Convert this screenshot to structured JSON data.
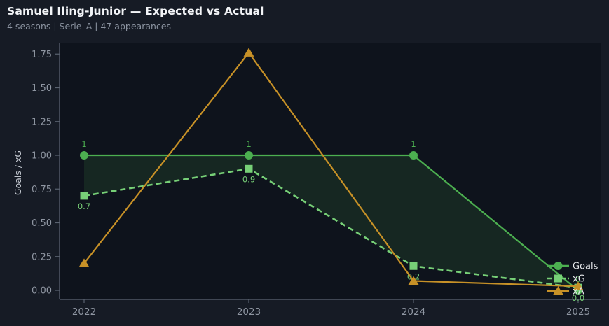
{
  "header": {
    "title": "Samuel Iling-Junior — Expected vs Actual",
    "subtitle": "4 seasons | Serie_A | 47 appearances"
  },
  "colors": {
    "page_bg": "#161b25",
    "plot_bg": "#0e131c",
    "axis": "#5a6270",
    "tick_text": "#8f96a2",
    "ylabel_text": "#c7ccd4",
    "legend_text": "#e6e8eb",
    "goals": "#4caf50",
    "xg": "#77d077",
    "xa": "#c79127",
    "fill_between": "rgba(76,175,80,0.13)"
  },
  "chart_data": {
    "type": "line",
    "title": "Samuel Iling-Junior — Expected vs Actual",
    "subtitle": "4 seasons | Serie_A | 47 appearances",
    "ylabel": "Goals / xG",
    "xlabel": "",
    "grid": false,
    "x": [
      2022,
      2023,
      2024,
      2025
    ],
    "xtick_labels": [
      "2022",
      "2023",
      "2024",
      "2025"
    ],
    "yticks": [
      0,
      0.25,
      0.5,
      0.75,
      1.0,
      1.25,
      1.5,
      1.75
    ],
    "ytick_labels": [
      "0.00",
      "0.25",
      "0.50",
      "0.75",
      "1.00",
      "1.25",
      "1.50",
      "1.75"
    ],
    "ylim": [
      -0.07,
      1.84
    ],
    "legend_position": "right-inside",
    "fill_between": {
      "upper": "Goals",
      "lower": "xG",
      "color": "rgba(76,175,80,0.13)"
    },
    "series": [
      {
        "name": "Goals",
        "color": "#4caf50",
        "style": "solid",
        "marker": "circle",
        "label_side": "above",
        "values": [
          1,
          1,
          1,
          0
        ],
        "point_labels": [
          "1",
          "1",
          "1",
          "0"
        ]
      },
      {
        "name": "xG",
        "color": "#77d077",
        "style": "dashed",
        "marker": "square",
        "label_side": "below",
        "values": [
          0.7,
          0.9,
          0.18,
          0.02
        ],
        "point_labels": [
          "0.7",
          "0.9",
          "0.2",
          "0.0"
        ]
      },
      {
        "name": "xA",
        "color": "#c79127",
        "style": "solid",
        "marker": "triangle",
        "label_side": "none",
        "values": [
          0.2,
          1.76,
          0.07,
          0.03
        ],
        "point_labels": null
      }
    ],
    "legend": [
      "Goals",
      "xG",
      "xA"
    ]
  }
}
